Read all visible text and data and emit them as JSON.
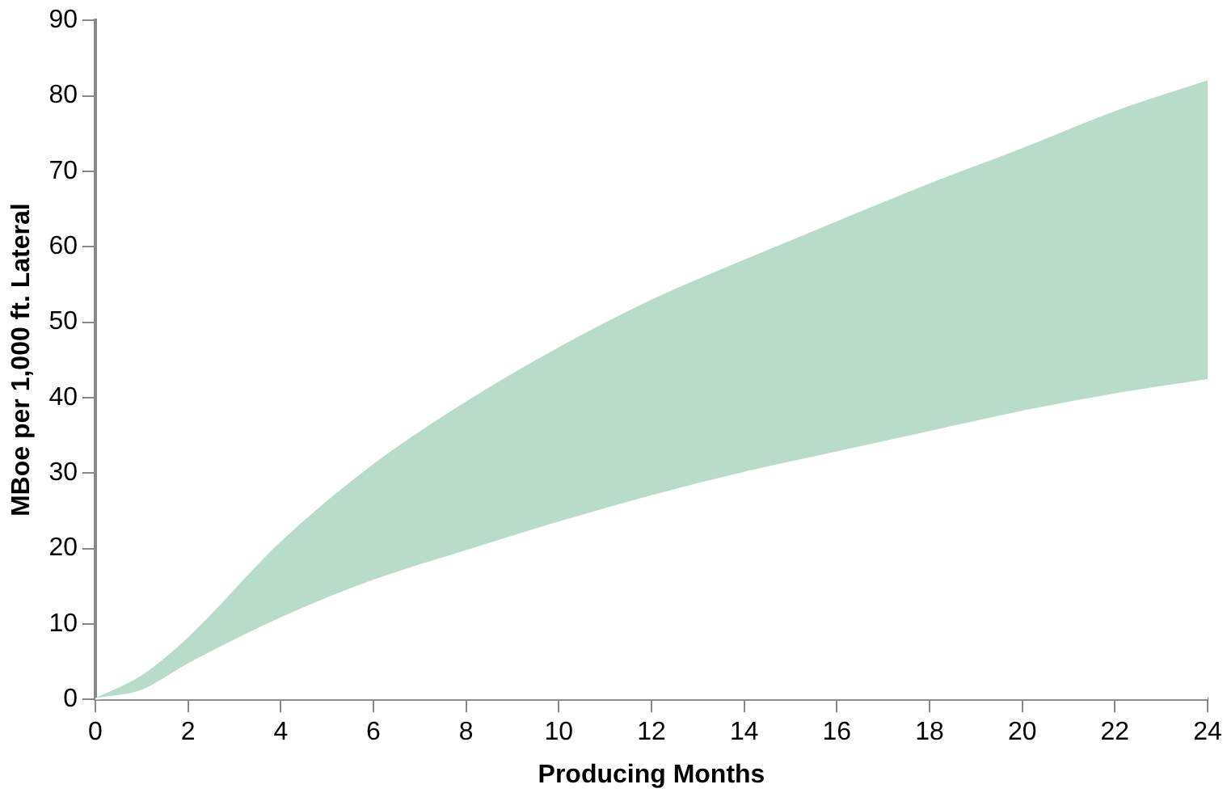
{
  "chart_data": {
    "type": "area",
    "xlabel": "Producing Months",
    "ylabel": "MBoe per 1,000 ft. Lateral",
    "x": [
      0,
      1,
      2,
      4,
      6,
      8,
      10,
      12,
      14,
      16,
      18,
      20,
      22,
      24
    ],
    "series": [
      {
        "color": "#b9dbc9",
        "values": [
          0,
          3,
          8,
          20.7,
          31,
          39.3,
          46.5,
          52.8,
          58.1,
          63.2,
          68.2,
          72.9,
          77.8,
          81.9
        ]
      },
      {
        "color": "#ffffff",
        "values": [
          0,
          1.1,
          4.6,
          10.7,
          15.7,
          19.6,
          23.4,
          26.9,
          30,
          32.7,
          35.4,
          38.1,
          40.4,
          42.3
        ]
      }
    ],
    "xlim": [
      0,
      24
    ],
    "xticks": [
      0,
      2,
      4,
      6,
      8,
      10,
      12,
      14,
      16,
      18,
      20,
      22,
      24
    ],
    "ylim": [
      0,
      90
    ],
    "yticks": [
      0,
      10,
      20,
      30,
      40,
      50,
      60,
      70,
      80,
      90
    ],
    "grid": false,
    "legend": false
  }
}
